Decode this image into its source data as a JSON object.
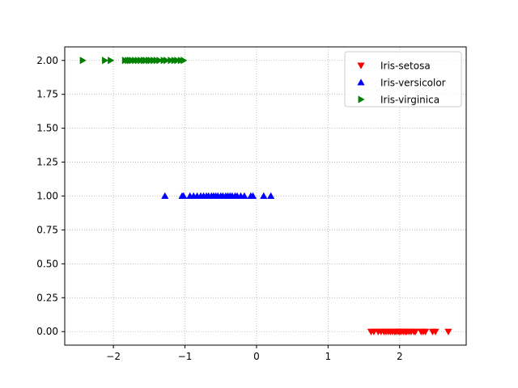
{
  "chart_data": {
    "type": "scatter",
    "title": "",
    "xlabel": "",
    "ylabel": "",
    "xlim": [
      -2.68,
      2.93
    ],
    "ylim": [
      -0.1,
      2.1
    ],
    "xticks": [
      -2,
      -1,
      0,
      1,
      2
    ],
    "xtick_labels": [
      "−2",
      "−1",
      "0",
      "1",
      "2"
    ],
    "yticks": [
      0.0,
      0.25,
      0.5,
      0.75,
      1.0,
      1.25,
      1.5,
      1.75,
      2.0
    ],
    "ytick_labels": [
      "0.00",
      "0.25",
      "0.50",
      "0.75",
      "1.00",
      "1.25",
      "1.50",
      "1.75",
      "2.00"
    ],
    "grid": true,
    "legend_position": "top-right",
    "series": [
      {
        "name": "Iris-setosa",
        "marker": "triangle-down",
        "color": "#ff0000",
        "y": 0.0,
        "x": [
          1.6,
          1.64,
          1.7,
          1.74,
          1.78,
          1.81,
          1.84,
          1.87,
          1.9,
          1.93,
          1.95,
          1.98,
          2.0,
          2.02,
          2.05,
          2.08,
          2.1,
          2.13,
          2.16,
          2.2,
          2.22,
          2.3,
          2.33,
          2.36,
          2.46,
          2.5,
          2.68
        ]
      },
      {
        "name": "Iris-versicolor",
        "marker": "triangle-up",
        "color": "#0000ff",
        "y": 1.0,
        "x": [
          -1.28,
          -1.04,
          -1.02,
          -0.93,
          -0.88,
          -0.83,
          -0.78,
          -0.74,
          -0.7,
          -0.67,
          -0.63,
          -0.6,
          -0.57,
          -0.54,
          -0.5,
          -0.47,
          -0.43,
          -0.4,
          -0.37,
          -0.34,
          -0.3,
          -0.27,
          -0.22,
          -0.17,
          -0.08,
          -0.05,
          0.1,
          0.2
        ]
      },
      {
        "name": "Iris-virginica",
        "marker": "triangle-right",
        "color": "#008000",
        "y": 2.0,
        "x": [
          -2.43,
          -2.12,
          -2.04,
          -1.84,
          -1.8,
          -1.77,
          -1.74,
          -1.7,
          -1.66,
          -1.62,
          -1.58,
          -1.55,
          -1.51,
          -1.48,
          -1.44,
          -1.4,
          -1.36,
          -1.3,
          -1.26,
          -1.2,
          -1.15,
          -1.11,
          -1.06,
          -1.02
        ]
      }
    ]
  }
}
